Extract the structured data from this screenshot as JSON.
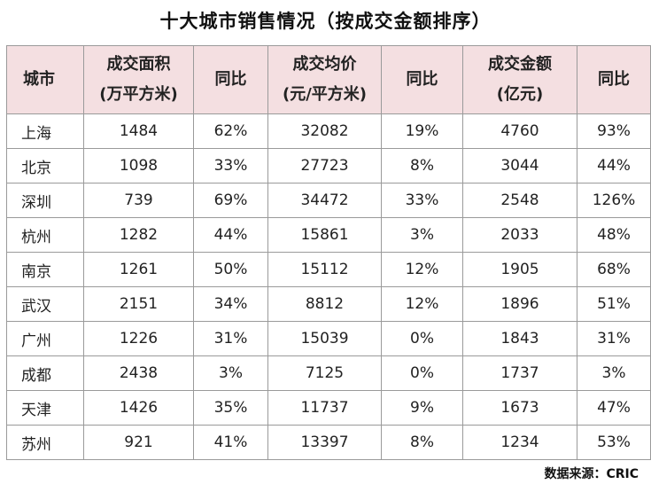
{
  "title": "十大城市销售情况（按成交金额排序）",
  "headers": {
    "city": "城市",
    "area_line1": "成交面积",
    "area_line2": "(万平方米)",
    "area_yoy": "同比",
    "price_line1": "成交均价",
    "price_line2": "(元/平方米)",
    "price_yoy": "同比",
    "amount_line1": "成交金额",
    "amount_line2": "(亿元)",
    "amount_yoy": "同比"
  },
  "rows": [
    {
      "city": "上海",
      "area": "1484",
      "area_yoy": "62%",
      "price": "32082",
      "price_yoy": "19%",
      "amount": "4760",
      "amount_yoy": "93%"
    },
    {
      "city": "北京",
      "area": "1098",
      "area_yoy": "33%",
      "price": "27723",
      "price_yoy": "8%",
      "amount": "3044",
      "amount_yoy": "44%"
    },
    {
      "city": "深圳",
      "area": "739",
      "area_yoy": "69%",
      "price": "34472",
      "price_yoy": "33%",
      "amount": "2548",
      "amount_yoy": "126%"
    },
    {
      "city": "杭州",
      "area": "1282",
      "area_yoy": "44%",
      "price": "15861",
      "price_yoy": "3%",
      "amount": "2033",
      "amount_yoy": "48%"
    },
    {
      "city": "南京",
      "area": "1261",
      "area_yoy": "50%",
      "price": "15112",
      "price_yoy": "12%",
      "amount": "1905",
      "amount_yoy": "68%"
    },
    {
      "city": "武汉",
      "area": "2151",
      "area_yoy": "34%",
      "price": "8812",
      "price_yoy": "12%",
      "amount": "1896",
      "amount_yoy": "51%"
    },
    {
      "city": "广州",
      "area": "1226",
      "area_yoy": "31%",
      "price": "15039",
      "price_yoy": "0%",
      "amount": "1843",
      "amount_yoy": "31%"
    },
    {
      "city": "成都",
      "area": "2438",
      "area_yoy": "3%",
      "price": "7125",
      "price_yoy": "0%",
      "amount": "1737",
      "amount_yoy": "3%"
    },
    {
      "city": "天津",
      "area": "1426",
      "area_yoy": "35%",
      "price": "11737",
      "price_yoy": "9%",
      "amount": "1673",
      "amount_yoy": "47%"
    },
    {
      "city": "苏州",
      "area": "921",
      "area_yoy": "41%",
      "price": "13397",
      "price_yoy": "8%",
      "amount": "1234",
      "amount_yoy": "53%"
    }
  ],
  "source": "数据来源：CRIC",
  "colors": {
    "header_bg": "#f4dfe1",
    "border": "#9a9a9a"
  }
}
